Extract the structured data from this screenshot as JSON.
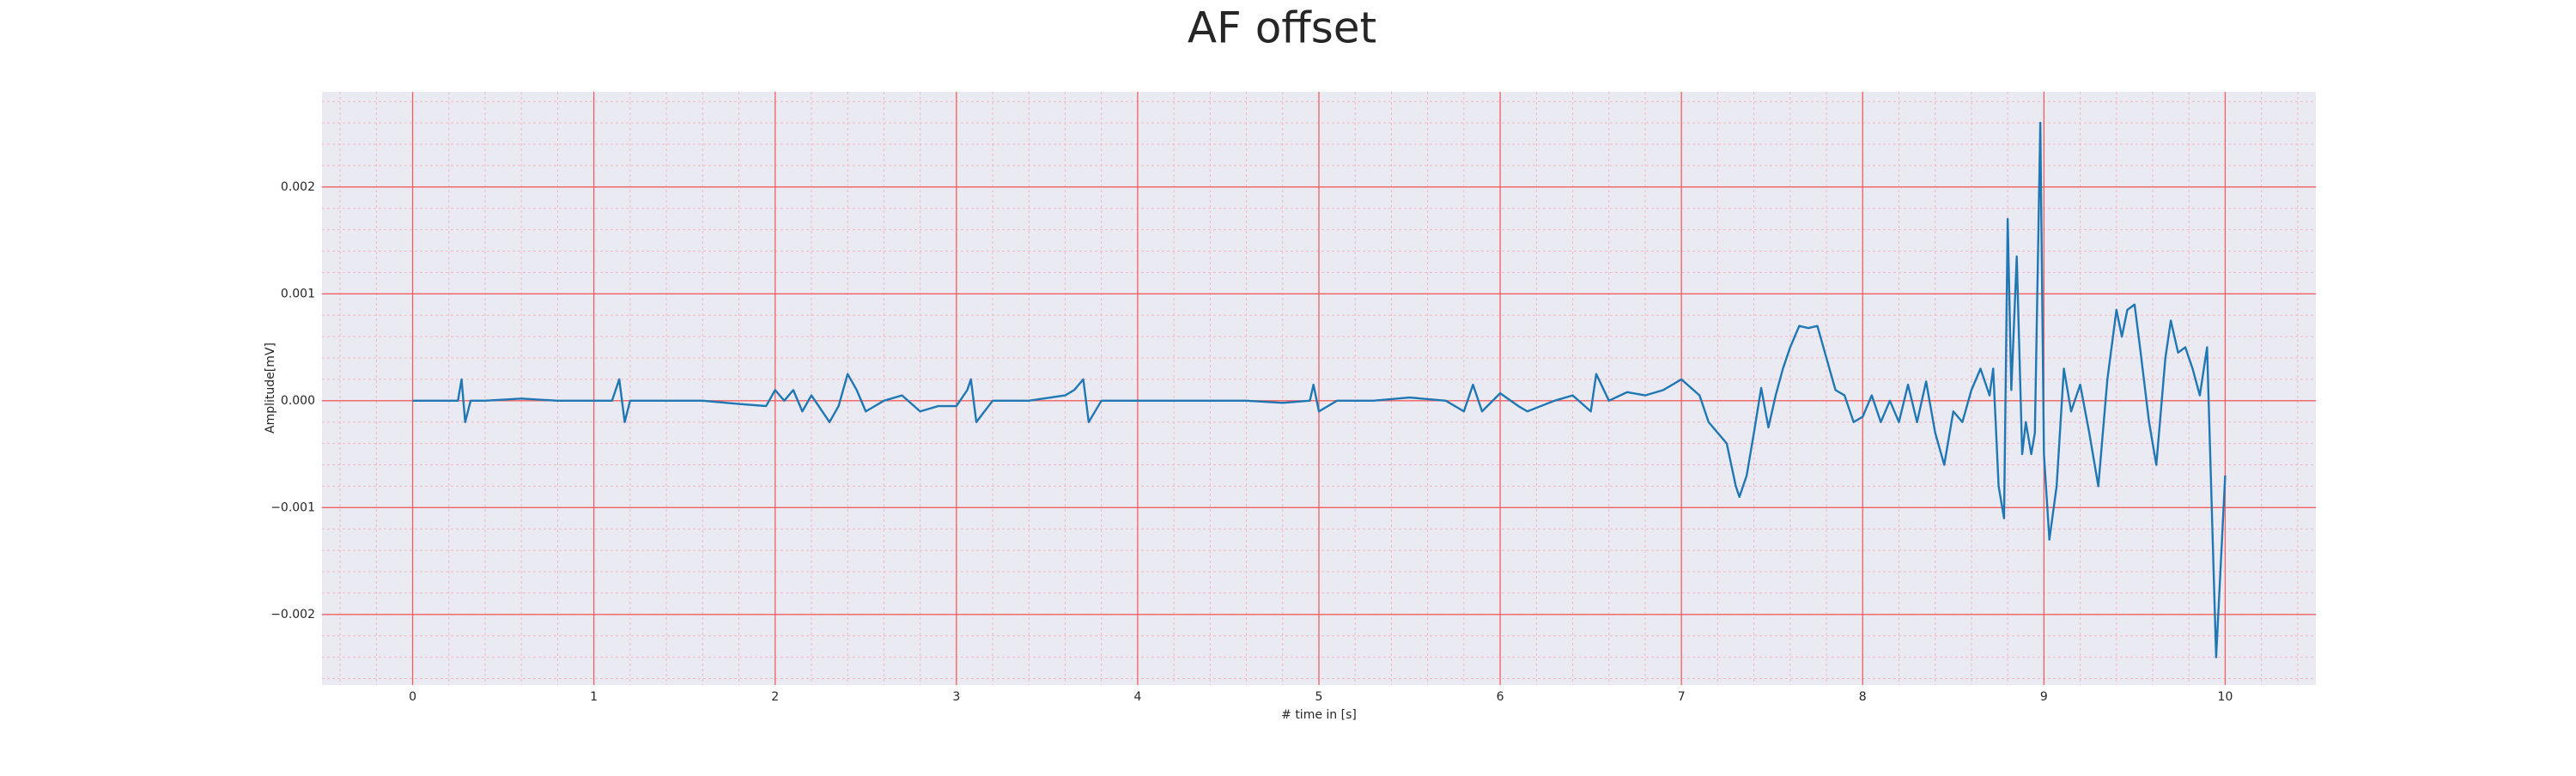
{
  "chart_data": {
    "type": "line",
    "title": "AF offset",
    "x_label": "# time in [s]",
    "y_label": "Amplitude[mV]",
    "grid": true,
    "xlim": [
      -0.5,
      10.5
    ],
    "ylim": [
      -0.00266,
      0.00289
    ],
    "xticks": [
      0,
      1,
      2,
      3,
      4,
      5,
      6,
      7,
      8,
      9,
      10
    ],
    "yticks": [
      {
        "value": -0.002,
        "label": "−0.002"
      },
      {
        "value": -0.001,
        "label": "−0.001"
      },
      {
        "value": 0,
        "label": "0.000"
      },
      0.001,
      0.002
    ],
    "x": [
      0,
      0.1,
      0.2,
      0.25,
      0.27,
      0.29,
      0.32,
      0.4,
      0.6,
      0.8,
      1.0,
      1.1,
      1.14,
      1.17,
      1.2,
      1.4,
      1.6,
      1.8,
      1.95,
      2.0,
      2.05,
      2.1,
      2.15,
      2.2,
      2.3,
      2.35,
      2.4,
      2.45,
      2.5,
      2.6,
      2.7,
      2.8,
      2.9,
      3.0,
      3.06,
      3.08,
      3.11,
      3.2,
      3.4,
      3.6,
      3.65,
      3.7,
      3.73,
      3.8,
      4.0,
      4.2,
      4.4,
      4.6,
      4.8,
      4.95,
      4.97,
      5.0,
      5.1,
      5.3,
      5.5,
      5.7,
      5.8,
      5.85,
      5.9,
      6.0,
      6.1,
      6.15,
      6.3,
      6.4,
      6.5,
      6.53,
      6.6,
      6.7,
      6.8,
      6.9,
      7.0,
      7.1,
      7.15,
      7.2,
      7.25,
      7.3,
      7.32,
      7.36,
      7.4,
      7.44,
      7.48,
      7.52,
      7.56,
      7.6,
      7.65,
      7.7,
      7.75,
      7.8,
      7.85,
      7.9,
      7.95,
      8.0,
      8.05,
      8.1,
      8.15,
      8.2,
      8.25,
      8.3,
      8.35,
      8.4,
      8.45,
      8.5,
      8.55,
      8.6,
      8.65,
      8.7,
      8.72,
      8.75,
      8.78,
      8.8,
      8.82,
      8.85,
      8.88,
      8.9,
      8.93,
      8.95,
      8.98,
      9.0,
      9.03,
      9.07,
      9.11,
      9.15,
      9.2,
      9.25,
      9.3,
      9.35,
      9.4,
      9.43,
      9.46,
      9.5,
      9.53,
      9.58,
      9.62,
      9.67,
      9.7,
      9.74,
      9.78,
      9.82,
      9.86,
      9.9,
      9.95,
      10.0
    ],
    "series": [
      {
        "name": "AF offset",
        "color": "#1f77b4",
        "values": [
          0,
          0,
          0,
          0,
          0.0002,
          -0.0002,
          0,
          0,
          2e-05,
          0,
          0,
          0,
          0.0002,
          -0.0002,
          0,
          0,
          0,
          -3e-05,
          -5e-05,
          0.0001,
          0,
          0.0001,
          -0.0001,
          5e-05,
          -0.0002,
          -5e-05,
          0.00025,
          0.0001,
          -0.0001,
          0,
          5e-05,
          -0.0001,
          -5e-05,
          -5e-05,
          0.0001,
          0.0002,
          -0.0002,
          0,
          0,
          5e-05,
          0.0001,
          0.0002,
          -0.0002,
          0,
          0,
          0,
          0,
          0,
          -2e-05,
          0,
          0.00015,
          -0.0001,
          0,
          0,
          3e-05,
          0,
          -0.0001,
          0.00015,
          -0.0001,
          7e-05,
          -5e-05,
          -0.0001,
          0,
          5e-05,
          -0.0001,
          0.00025,
          0,
          8e-05,
          5e-05,
          0.0001,
          0.0002,
          5e-05,
          -0.0002,
          -0.0003,
          -0.0004,
          -0.0008,
          -0.0009,
          -0.0007,
          -0.0003,
          0.00012,
          -0.00025,
          5e-05,
          0.0003,
          0.0005,
          0.0007,
          0.00068,
          0.0007,
          0.0004,
          0.0001,
          5e-05,
          -0.0002,
          -0.00015,
          5e-05,
          -0.0002,
          0,
          -0.0002,
          0.00015,
          -0.0002,
          0.00018,
          -0.0003,
          -0.0006,
          -0.0001,
          -0.0002,
          0.0001,
          0.0003,
          5e-05,
          0.0003,
          -0.0008,
          -0.0011,
          0.0017,
          0.0001,
          0.00135,
          -0.0005,
          -0.0002,
          -0.0005,
          -0.0003,
          0.0026,
          -0.0005,
          -0.0013,
          -0.0008,
          0.0003,
          -0.0001,
          0.00015,
          -0.0003,
          -0.0008,
          0.0002,
          0.00085,
          0.0006,
          0.00085,
          0.0009,
          0.0005,
          -0.0002,
          -0.0006,
          0.0004,
          0.00075,
          0.00045,
          0.0005,
          0.0003,
          5e-05,
          0.0005,
          -0.0024,
          -0.0007
        ]
      }
    ]
  }
}
